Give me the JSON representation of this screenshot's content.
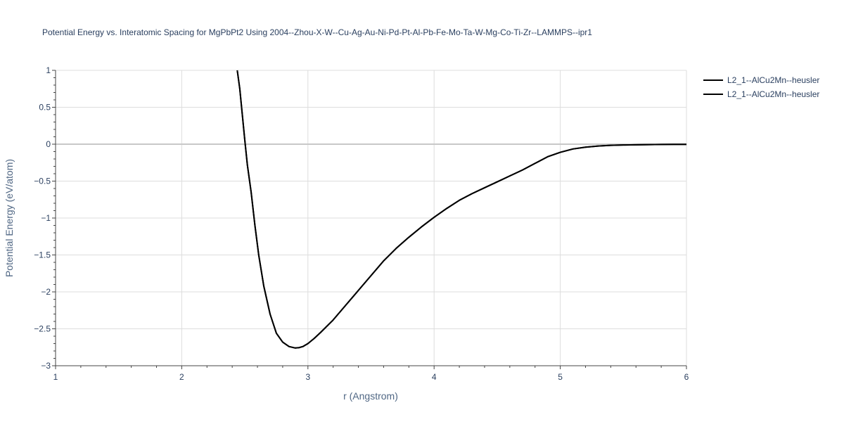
{
  "chart_data": {
    "type": "line",
    "title": "Potential Energy vs. Interatomic Spacing for MgPbPt2 Using 2004--Zhou-X-W--Cu-Ag-Au-Ni-Pd-Pt-Al-Pb-Fe-Mo-Ta-W-Mg-Co-Ti-Zr--LAMMPS--ipr1",
    "xlabel": "r (Angstrom)",
    "ylabel": "Potential Energy (eV/atom)",
    "xlim": [
      1,
      6
    ],
    "ylim": [
      -3,
      1
    ],
    "x_ticks": [
      "1",
      "2",
      "3",
      "4",
      "5",
      "6"
    ],
    "y_ticks": [
      "1",
      "0.5",
      "0",
      "−0.5",
      "−1",
      "−1.5",
      "−2",
      "−2.5",
      "−3"
    ],
    "grid": true,
    "legend_position": "top-right",
    "line_color": "#000000",
    "series": [
      {
        "name": "L2_1--AlCu2Mn--heusler",
        "x": [
          2.44,
          2.46,
          2.48,
          2.5,
          2.52,
          2.55,
          2.58,
          2.61,
          2.65,
          2.7,
          2.75,
          2.8,
          2.85,
          2.9,
          2.93,
          2.96,
          3.0,
          3.05,
          3.1,
          3.2,
          3.3,
          3.4,
          3.5,
          3.6,
          3.7,
          3.8,
          3.9,
          4.0,
          4.1,
          4.2,
          4.3,
          4.4,
          4.5,
          4.6,
          4.7,
          4.8,
          4.9,
          4.95,
          5.0,
          5.1,
          5.2,
          5.3,
          5.4,
          5.5,
          5.6,
          5.7,
          5.8,
          5.9,
          6.0
        ],
        "y": [
          1.0,
          0.75,
          0.4,
          0.05,
          -0.28,
          -0.65,
          -1.1,
          -1.5,
          -1.92,
          -2.3,
          -2.56,
          -2.68,
          -2.74,
          -2.76,
          -2.755,
          -2.74,
          -2.7,
          -2.63,
          -2.55,
          -2.38,
          -2.18,
          -1.98,
          -1.78,
          -1.58,
          -1.41,
          -1.26,
          -1.12,
          -0.99,
          -0.87,
          -0.76,
          -0.67,
          -0.59,
          -0.51,
          -0.43,
          -0.35,
          -0.26,
          -0.17,
          -0.14,
          -0.11,
          -0.065,
          -0.04,
          -0.025,
          -0.016,
          -0.011,
          -0.008,
          -0.006,
          -0.004,
          -0.003,
          -0.002
        ]
      },
      {
        "name": "L2_1--AlCu2Mn--heusler",
        "x": [
          2.44,
          2.46,
          2.48,
          2.5,
          2.52,
          2.55,
          2.58,
          2.61,
          2.65,
          2.7,
          2.75,
          2.8,
          2.85,
          2.9,
          2.93,
          2.96,
          3.0,
          3.05,
          3.1,
          3.2,
          3.3,
          3.4,
          3.5,
          3.6,
          3.7,
          3.8,
          3.9,
          4.0,
          4.1,
          4.2,
          4.3,
          4.4,
          4.5,
          4.6,
          4.7,
          4.8,
          4.9,
          4.95,
          5.0,
          5.1,
          5.2,
          5.3,
          5.4,
          5.5,
          5.6,
          5.7,
          5.8,
          5.9,
          6.0
        ],
        "y": [
          1.0,
          0.75,
          0.4,
          0.05,
          -0.28,
          -0.65,
          -1.1,
          -1.5,
          -1.92,
          -2.3,
          -2.56,
          -2.68,
          -2.74,
          -2.76,
          -2.755,
          -2.74,
          -2.7,
          -2.63,
          -2.55,
          -2.38,
          -2.18,
          -1.98,
          -1.78,
          -1.58,
          -1.41,
          -1.26,
          -1.12,
          -0.99,
          -0.87,
          -0.76,
          -0.67,
          -0.59,
          -0.51,
          -0.43,
          -0.35,
          -0.26,
          -0.17,
          -0.14,
          -0.11,
          -0.065,
          -0.04,
          -0.025,
          -0.016,
          -0.011,
          -0.008,
          -0.006,
          -0.004,
          -0.003,
          -0.002
        ]
      }
    ]
  }
}
